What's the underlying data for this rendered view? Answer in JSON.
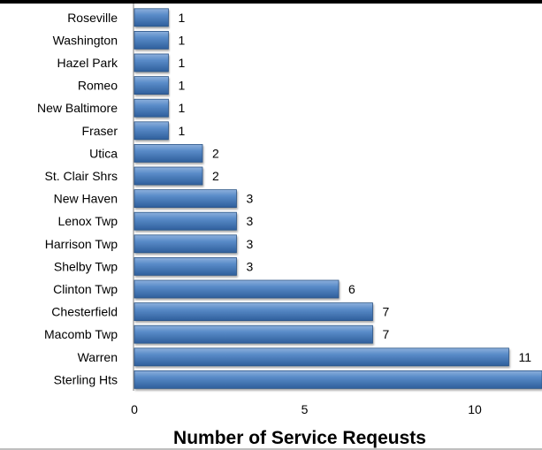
{
  "chart_data": {
    "type": "bar",
    "orientation": "horizontal",
    "categories": [
      "Roseville",
      "Washington",
      "Hazel Park",
      "Romeo",
      "New Baltimore",
      "Fraser",
      "Utica",
      "St. Clair Shrs",
      "New Haven",
      "Lenox Twp",
      "Harrison Twp",
      "Shelby Twp",
      "Clinton Twp",
      "Chesterfield",
      "Macomb Twp",
      "Warren",
      "Sterling Hts"
    ],
    "values": [
      1,
      1,
      1,
      1,
      1,
      1,
      2,
      2,
      3,
      3,
      3,
      3,
      6,
      7,
      7,
      11,
      12
    ],
    "data_labels": [
      "1",
      "1",
      "1",
      "1",
      "1",
      "1",
      "2",
      "2",
      "3",
      "3",
      "3",
      "3",
      "6",
      "7",
      "7",
      "11",
      ""
    ],
    "xlabel": "Number of Service Reqeusts",
    "ylabel": "",
    "xlim": [
      0,
      12
    ],
    "xticks": [
      0,
      5,
      10
    ],
    "grid": false,
    "bar_color": "#4a7ebb",
    "bar_edge_color": "#2c5486",
    "axis_color": "#7f7f7f"
  }
}
